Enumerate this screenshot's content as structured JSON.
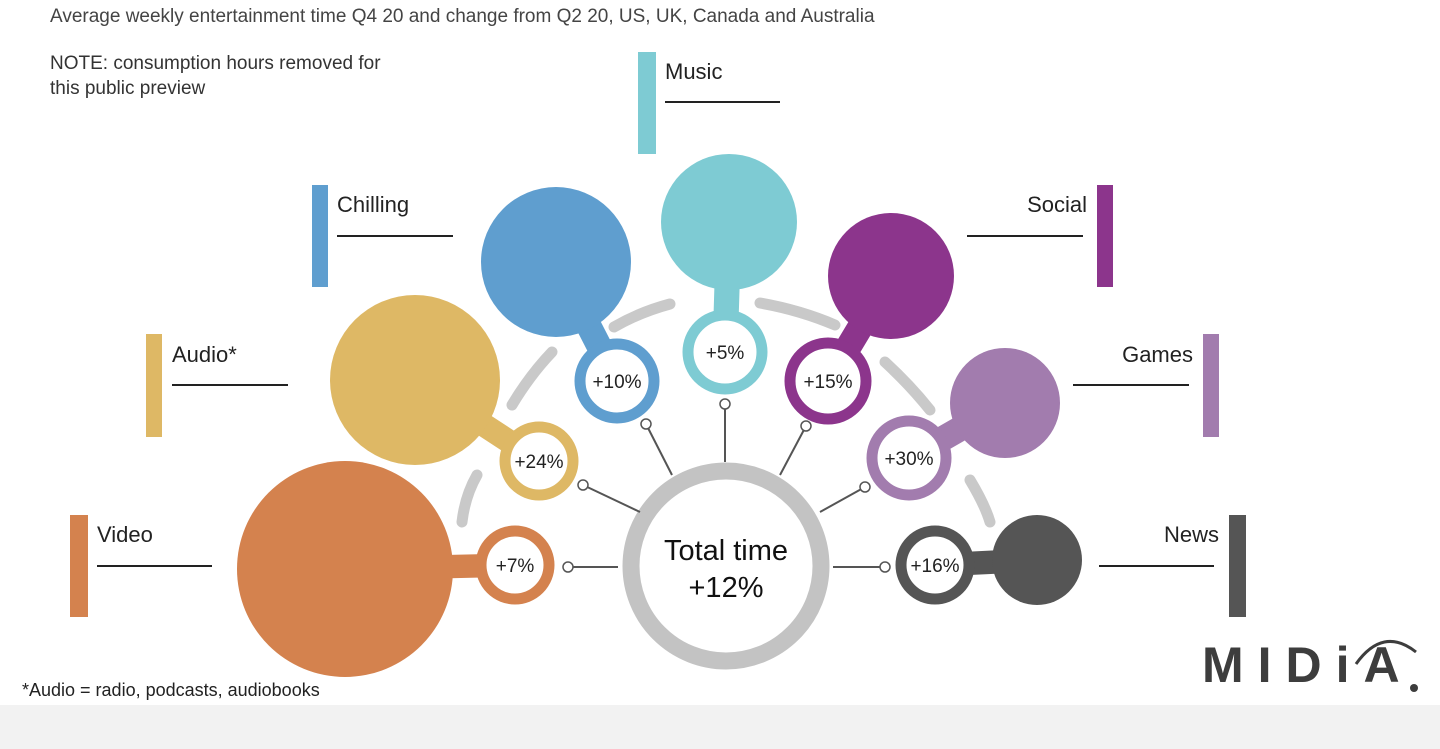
{
  "title": "Average weekly entertainment time Q4 20 and change from Q2 20, US, UK, Canada and Australia",
  "note_lines": [
    "NOTE: consumption hours removed for",
    "this public preview"
  ],
  "footnote": "*Audio = radio, podcasts, audiobooks",
  "logo": "MIDiA",
  "center": {
    "line1": "Total time",
    "line2": "+12%",
    "color": "#c3c3c3"
  },
  "colors": {
    "arc": "#c9c9c9",
    "connector": "#555555"
  },
  "categories": [
    {
      "key": "video",
      "label": "Video",
      "change": "+7%",
      "color": "#d4824e"
    },
    {
      "key": "audio",
      "label": "Audio*",
      "change": "+24%",
      "color": "#deb865"
    },
    {
      "key": "chilling",
      "label": "Chilling",
      "change": "+10%",
      "color": "#5f9ecf"
    },
    {
      "key": "music",
      "label": "Music",
      "change": "+5%",
      "color": "#7ecbd3"
    },
    {
      "key": "social",
      "label": "Social",
      "change": "+15%",
      "color": "#8c358c"
    },
    {
      "key": "games",
      "label": "Games",
      "change": "+30%",
      "color": "#a27cae"
    },
    {
      "key": "news",
      "label": "News",
      "change": "+16%",
      "color": "#555555"
    }
  ]
}
